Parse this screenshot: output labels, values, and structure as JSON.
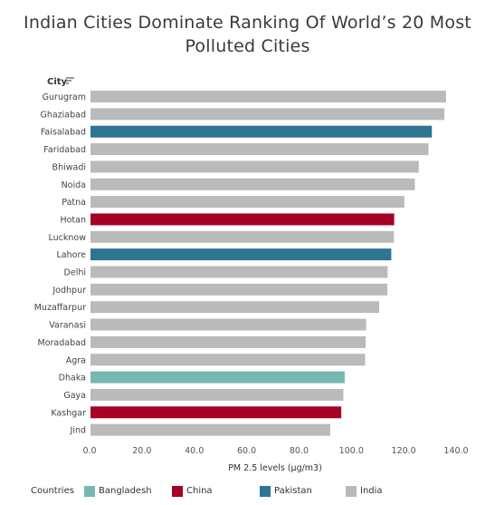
{
  "title_line1": "Indian Cities Dominate Ranking Of World’s 20 Most",
  "title_line2": "Polluted Cities",
  "city_header": "City",
  "legend_title": "Countries",
  "colors": {
    "Bangladesh": "#76b7b2",
    "China": "#a50026",
    "Pakistan": "#2e7593",
    "India": "#bababa"
  },
  "legend": [
    "Bangladesh",
    "China",
    "Pakistan",
    "India"
  ],
  "chart_data": {
    "type": "bar",
    "orientation": "horizontal",
    "title": "Indian Cities Dominate Ranking Of World’s 20 Most Polluted Cities",
    "xlabel": "PM 2.5 levels (µg/m3)",
    "ylabel": "City",
    "xlim": [
      0,
      140
    ],
    "xticks": [
      "0.0",
      "20.0",
      "40.0",
      "60.0",
      "80.0",
      "100.0",
      "120.0",
      "140.0"
    ],
    "grid": false,
    "legend_position": "bottom",
    "categories": [
      "Gurugram",
      "Ghaziabad",
      "Faisalabad",
      "Faridabad",
      "Bhiwadi",
      "Noida",
      "Patna",
      "Hotan",
      "Lucknow",
      "Lahore",
      "Delhi",
      "Jodhpur",
      "Muzaffarpur",
      "Varanasi",
      "Moradabad",
      "Agra",
      "Dhaka",
      "Gaya",
      "Kashgar",
      "Jind"
    ],
    "values": [
      135.8,
      135.2,
      130.4,
      129.1,
      125.4,
      123.9,
      119.9,
      116.0,
      115.9,
      114.9,
      113.5,
      113.4,
      110.3,
      105.3,
      105.1,
      104.9,
      97.1,
      96.6,
      95.8,
      91.6
    ],
    "country": [
      "India",
      "India",
      "Pakistan",
      "India",
      "India",
      "India",
      "India",
      "China",
      "India",
      "Pakistan",
      "India",
      "India",
      "India",
      "India",
      "India",
      "India",
      "Bangladesh",
      "India",
      "China",
      "India"
    ]
  }
}
